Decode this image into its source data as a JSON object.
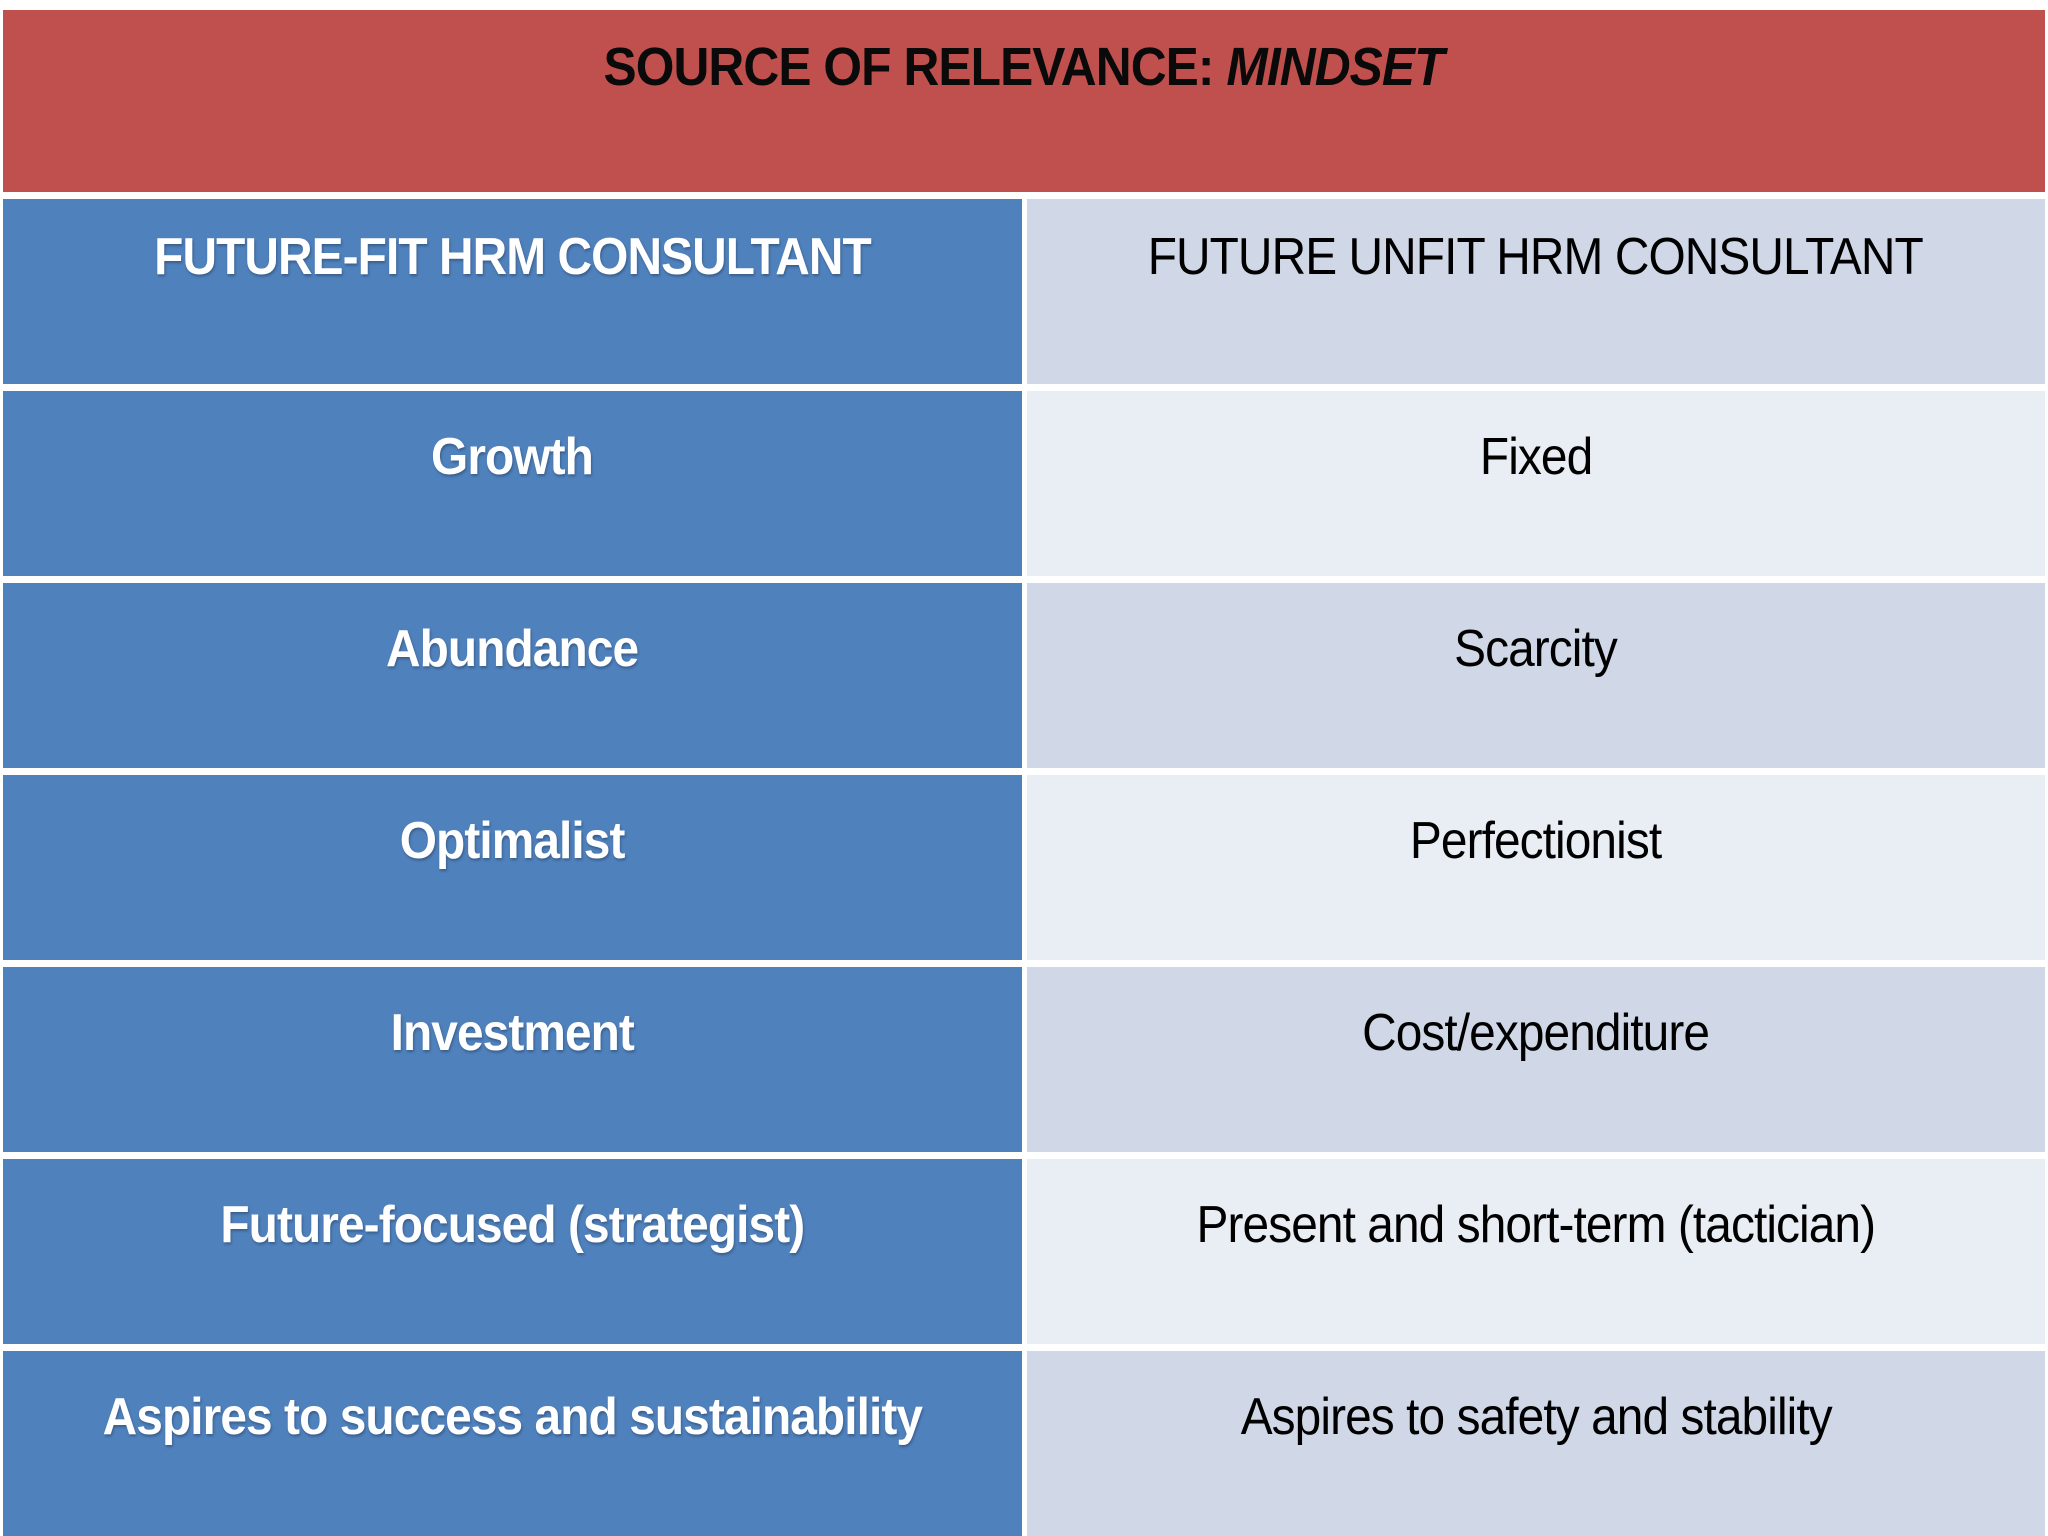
{
  "header": {
    "title_prefix": "SOURCE OF RELEVANCE: ",
    "title_emphasis": "MINDSET"
  },
  "table": {
    "columns": [
      {
        "label": "FUTURE-FIT HRM CONSULTANT"
      },
      {
        "label": "FUTURE UNFIT HRM CONSULTANT"
      }
    ],
    "rows": [
      {
        "left": "Growth",
        "right": "Fixed"
      },
      {
        "left": "Abundance",
        "right": "Scarcity"
      },
      {
        "left": "Optimalist",
        "right": "Perfectionist"
      },
      {
        "left": "Investment",
        "right": "Cost/expenditure"
      },
      {
        "left": "Future-focused (strategist)",
        "right": "Present and short-term (tactician)"
      },
      {
        "left": "Aspires to success and sustainability",
        "right": "Aspires to safety and stability"
      }
    ]
  },
  "colors": {
    "banner_bg": "#C0504D",
    "left_cell_bg": "#4F81BD",
    "right_band_dark": "#D0D8E8",
    "right_band_light": "#E9EDF4",
    "left_text": "#FFFFFF",
    "right_text": "#000000",
    "title_text": "#0A0A0A",
    "separator": "#FFFFFF"
  }
}
